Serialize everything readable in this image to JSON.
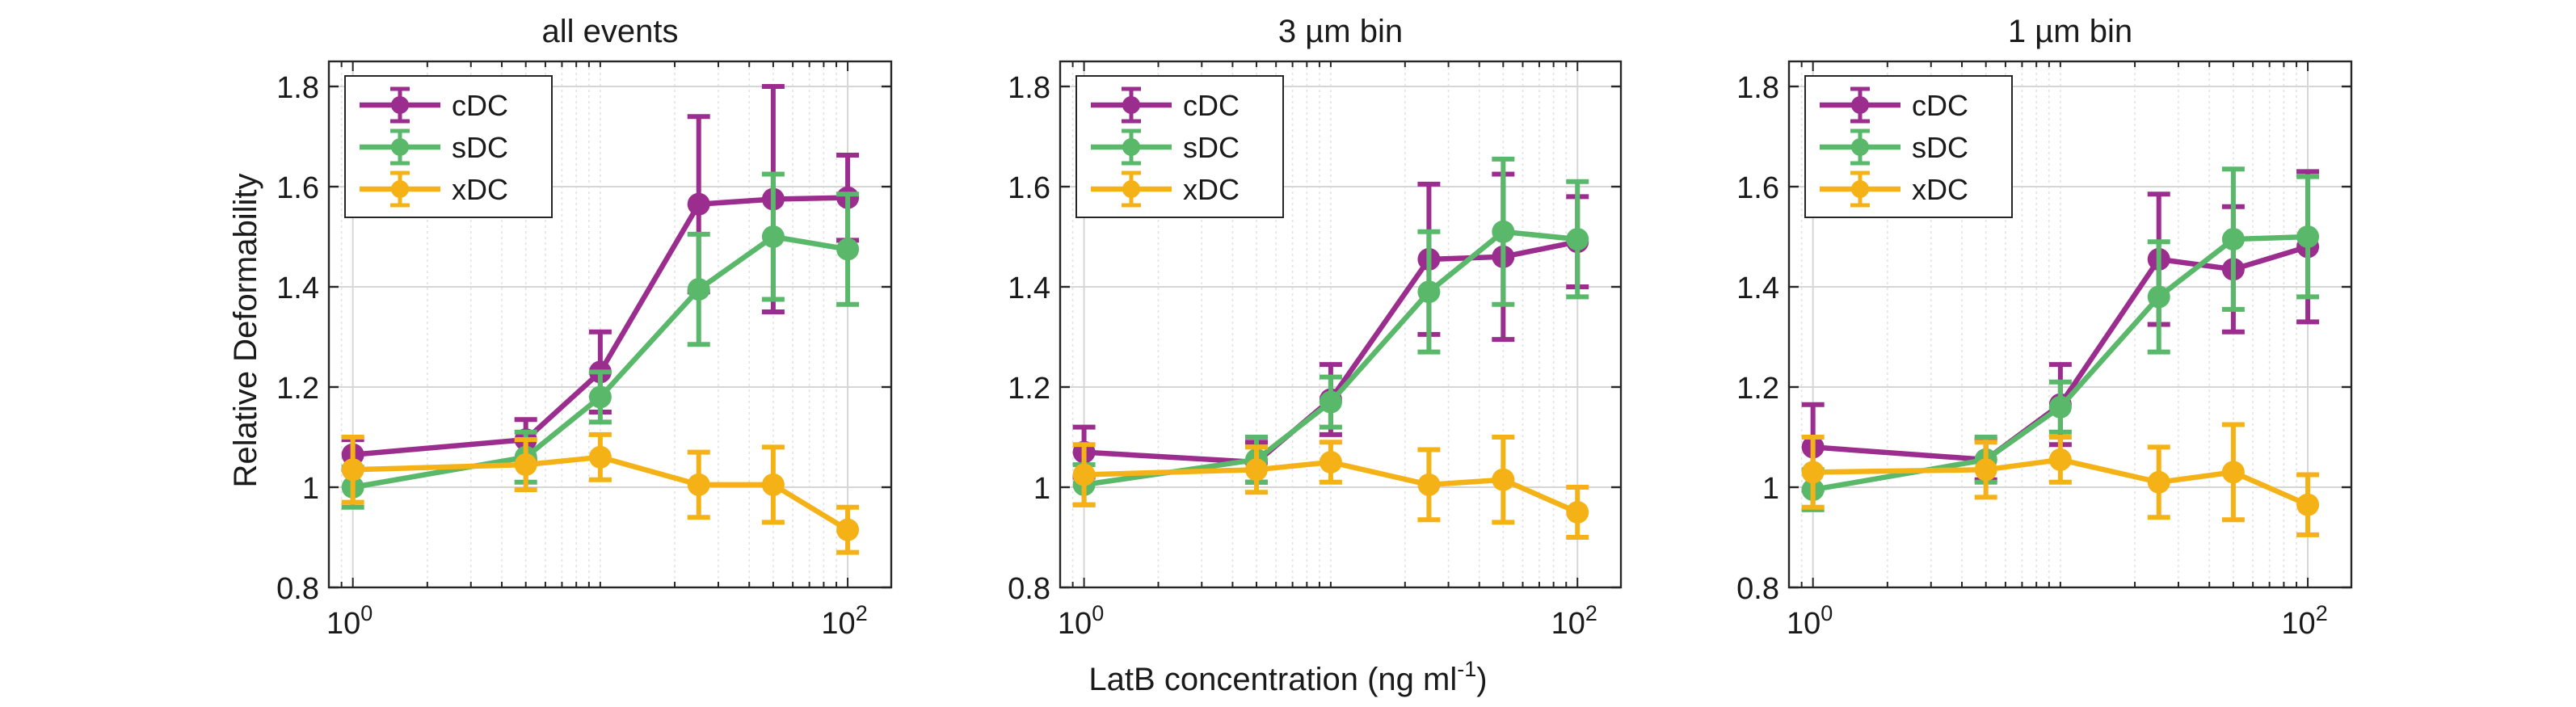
{
  "xlabel": "LatB concentration (ng ml",
  "xlabel_exp": "-1",
  "xlabel_end": ")",
  "ylabel": "Relative Deformability",
  "colors": {
    "cDC": "#9b2d8e",
    "sDC": "#59b86a",
    "xDC": "#f5b216"
  },
  "legend_placement": "top-left",
  "chart_data": [
    {
      "type": "line",
      "title": "all events",
      "xscale": "log",
      "xlim": [
        0.8,
        150
      ],
      "ylim": [
        0.8,
        1.85
      ],
      "x_ticks": [
        1,
        100
      ],
      "x_tick_labels": [
        {
          "base": "10",
          "exp": "0"
        },
        {
          "base": "10",
          "exp": "2"
        }
      ],
      "y_ticks": [
        0.8,
        1,
        1.2,
        1.4,
        1.6,
        1.8
      ],
      "y_tick_labels": [
        "0.8",
        "1",
        "1.2",
        "1.4",
        "1.6",
        "1.8"
      ],
      "grid": true,
      "x": [
        1,
        5,
        10,
        25,
        50,
        100
      ],
      "series": [
        {
          "name": "cDC",
          "y": [
            1.065,
            1.095,
            1.23,
            1.565,
            1.575,
            1.578
          ],
          "err": [
            0.03,
            0.04,
            0.08,
            0.175,
            0.225,
            0.085
          ]
        },
        {
          "name": "sDC",
          "y": [
            1.0,
            1.06,
            1.18,
            1.395,
            1.5,
            1.475
          ],
          "err": [
            0.04,
            0.05,
            0.05,
            0.11,
            0.125,
            0.11
          ]
        },
        {
          "name": "xDC",
          "y": [
            1.035,
            1.045,
            1.06,
            1.005,
            1.005,
            0.915
          ],
          "err": [
            0.065,
            0.05,
            0.045,
            0.065,
            0.075,
            0.045
          ]
        }
      ]
    },
    {
      "type": "line",
      "title": "3 µm bin",
      "xscale": "log",
      "xlim": [
        0.8,
        150
      ],
      "ylim": [
        0.8,
        1.85
      ],
      "x_ticks": [
        1,
        100
      ],
      "x_tick_labels": [
        {
          "base": "10",
          "exp": "0"
        },
        {
          "base": "10",
          "exp": "2"
        }
      ],
      "y_ticks": [
        0.8,
        1,
        1.2,
        1.4,
        1.6,
        1.8
      ],
      "y_tick_labels": [
        "0.8",
        "1",
        "1.2",
        "1.4",
        "1.6",
        "1.8"
      ],
      "grid": true,
      "x": [
        1,
        5,
        10,
        25,
        50,
        100
      ],
      "series": [
        {
          "name": "cDC",
          "y": [
            1.07,
            1.05,
            1.175,
            1.455,
            1.46,
            1.49
          ],
          "err": [
            0.05,
            0.04,
            0.07,
            0.15,
            0.165,
            0.09
          ]
        },
        {
          "name": "sDC",
          "y": [
            1.005,
            1.055,
            1.17,
            1.39,
            1.51,
            1.495
          ],
          "err": [
            0.04,
            0.045,
            0.05,
            0.12,
            0.145,
            0.115
          ]
        },
        {
          "name": "xDC",
          "y": [
            1.025,
            1.035,
            1.05,
            1.005,
            1.015,
            0.95
          ],
          "err": [
            0.06,
            0.045,
            0.04,
            0.07,
            0.085,
            0.05
          ]
        }
      ]
    },
    {
      "type": "line",
      "title": "1 µm bin",
      "xscale": "log",
      "xlim": [
        0.8,
        150
      ],
      "ylim": [
        0.8,
        1.85
      ],
      "x_ticks": [
        1,
        100
      ],
      "x_tick_labels": [
        {
          "base": "10",
          "exp": "0"
        },
        {
          "base": "10",
          "exp": "2"
        }
      ],
      "y_ticks": [
        0.8,
        1,
        1.2,
        1.4,
        1.6,
        1.8
      ],
      "y_tick_labels": [
        "0.8",
        "1",
        "1.2",
        "1.4",
        "1.6",
        "1.8"
      ],
      "grid": true,
      "x": [
        1,
        5,
        10,
        25,
        50,
        100
      ],
      "series": [
        {
          "name": "cDC",
          "y": [
            1.08,
            1.055,
            1.165,
            1.455,
            1.435,
            1.48
          ],
          "err": [
            0.085,
            0.04,
            0.08,
            0.13,
            0.125,
            0.15
          ]
        },
        {
          "name": "sDC",
          "y": [
            0.995,
            1.055,
            1.16,
            1.38,
            1.495,
            1.5
          ],
          "err": [
            0.04,
            0.045,
            0.05,
            0.11,
            0.14,
            0.12
          ]
        },
        {
          "name": "xDC",
          "y": [
            1.03,
            1.035,
            1.055,
            1.01,
            1.03,
            0.965
          ],
          "err": [
            0.07,
            0.055,
            0.045,
            0.07,
            0.095,
            0.06
          ]
        }
      ]
    }
  ]
}
